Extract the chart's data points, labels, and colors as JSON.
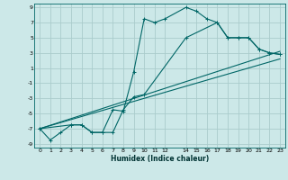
{
  "xlabel": "Humidex (Indice chaleur)",
  "background_color": "#cce8e8",
  "grid_color": "#aacccc",
  "line_color": "#006666",
  "xlim": [
    -0.5,
    23.5
  ],
  "ylim": [
    -9.5,
    9.5
  ],
  "xticks": [
    0,
    1,
    2,
    3,
    4,
    5,
    6,
    7,
    8,
    9,
    10,
    11,
    12,
    14,
    15,
    16,
    17,
    18,
    19,
    20,
    21,
    22,
    23
  ],
  "yticks": [
    -9,
    -7,
    -5,
    -3,
    -1,
    1,
    3,
    5,
    7,
    9
  ],
  "curve1_x": [
    0,
    1,
    2,
    3,
    4,
    5,
    6,
    7,
    8,
    9,
    10,
    11,
    12,
    14,
    15,
    16,
    17,
    18,
    19,
    20,
    21,
    22,
    23
  ],
  "curve1_y": [
    -7,
    -8.5,
    -7.5,
    -6.5,
    -6.5,
    -7.5,
    -7.5,
    -4.5,
    -4.7,
    0.5,
    7.5,
    7,
    7.5,
    9,
    8.5,
    7.5,
    7,
    5,
    5,
    5,
    3.5,
    3,
    2.8
  ],
  "curve2_x": [
    0,
    3,
    4,
    5,
    6,
    7,
    8,
    9,
    10,
    14,
    17,
    18,
    19,
    20,
    21,
    22,
    23
  ],
  "curve2_y": [
    -7,
    -6.5,
    -6.5,
    -7.5,
    -7.5,
    -7.5,
    -4.5,
    -2.8,
    -2.5,
    5,
    7,
    5,
    5,
    5,
    3.5,
    3,
    2.8
  ],
  "line1_x": [
    0,
    23
  ],
  "line1_y": [
    -7,
    3.2
  ],
  "line2_x": [
    0,
    23
  ],
  "line2_y": [
    -7,
    2.2
  ],
  "lw": 0.8,
  "ms": 2.5
}
